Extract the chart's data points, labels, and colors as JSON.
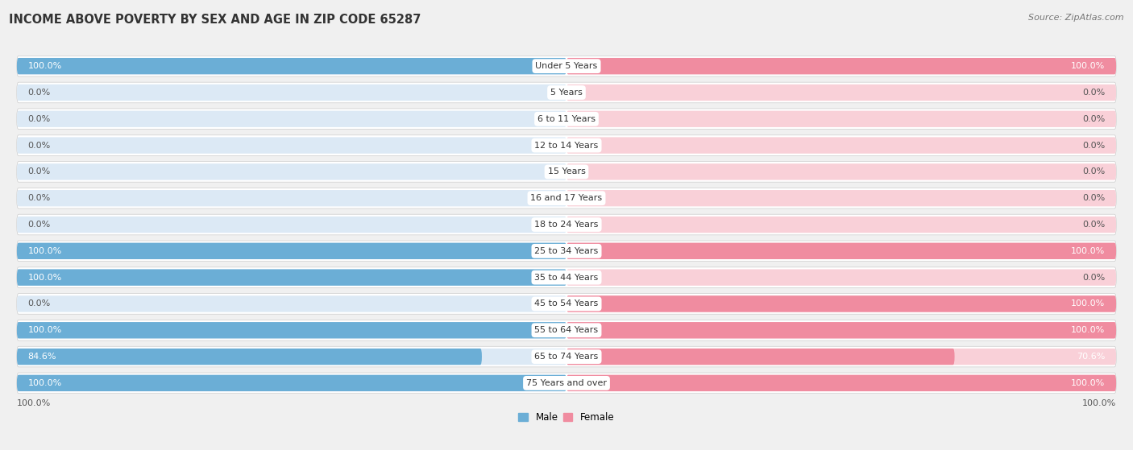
{
  "title": "INCOME ABOVE POVERTY BY SEX AND AGE IN ZIP CODE 65287",
  "source": "Source: ZipAtlas.com",
  "categories": [
    "Under 5 Years",
    "5 Years",
    "6 to 11 Years",
    "12 to 14 Years",
    "15 Years",
    "16 and 17 Years",
    "18 to 24 Years",
    "25 to 34 Years",
    "35 to 44 Years",
    "45 to 54 Years",
    "55 to 64 Years",
    "65 to 74 Years",
    "75 Years and over"
  ],
  "male_values": [
    100.0,
    0.0,
    0.0,
    0.0,
    0.0,
    0.0,
    0.0,
    100.0,
    100.0,
    0.0,
    100.0,
    84.6,
    100.0
  ],
  "female_values": [
    100.0,
    0.0,
    0.0,
    0.0,
    0.0,
    0.0,
    0.0,
    100.0,
    0.0,
    100.0,
    100.0,
    70.6,
    100.0
  ],
  "male_color": "#6baed6",
  "female_color": "#f08ca0",
  "male_label": "Male",
  "female_label": "Female",
  "bg_color": "#f0f0f0",
  "row_bg_color": "#ffffff",
  "bar_bg_color": "#dce9f5",
  "bar_bg_female_color": "#f9d0d8",
  "title_fontsize": 10.5,
  "label_fontsize": 8,
  "tick_fontsize": 8,
  "source_fontsize": 8
}
